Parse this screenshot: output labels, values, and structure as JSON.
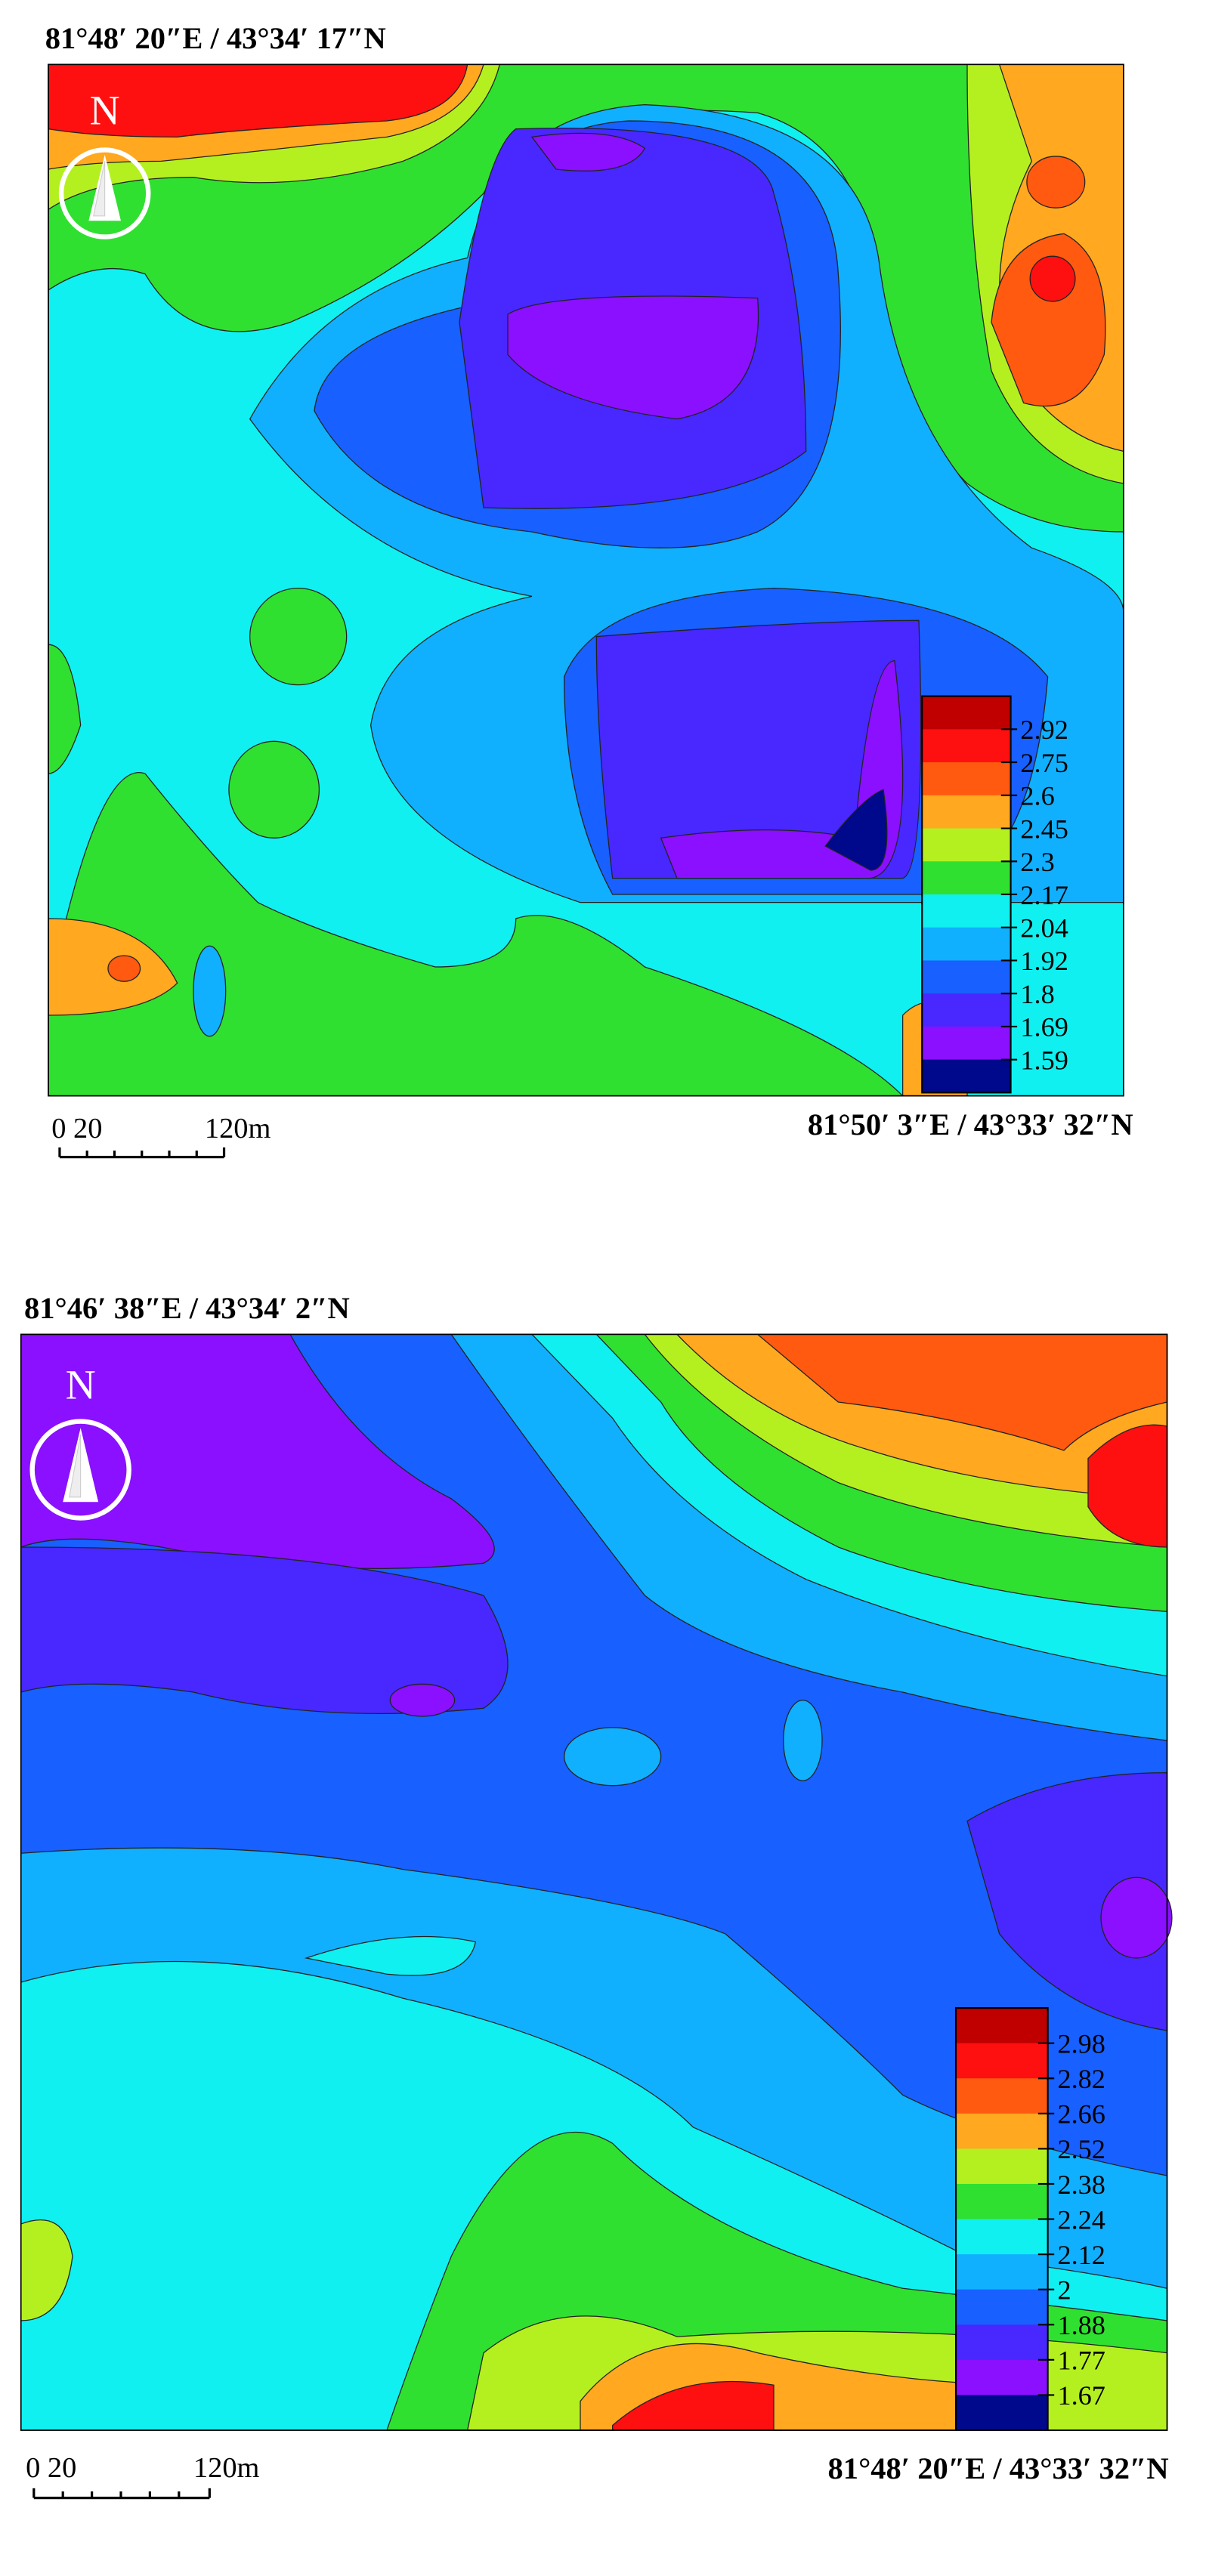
{
  "panels": [
    {
      "top_coordinate": "81°48′ 20″E / 43°34′ 17″N",
      "bottom_coordinate": "81°50′ 3″E / 43°33′ 32″N",
      "north": "N",
      "scale_start": "0 20",
      "scale_end": "120m",
      "colorbar_colors": [
        "#c00000",
        "#ff1010",
        "#ff5a10",
        "#ffa820",
        "#b4f020",
        "#30e030",
        "#10f0f0",
        "#10b0ff",
        "#1860ff",
        "#4828ff",
        "#8a10ff",
        "#00088c"
      ],
      "colorbar_ticks": [
        2.92,
        2.75,
        2.6,
        2.45,
        2.3,
        2.17,
        2.04,
        1.92,
        1.8,
        1.69,
        1.59
      ]
    },
    {
      "top_coordinate": "81°46′ 38″E / 43°34′ 2″N",
      "bottom_coordinate": "81°48′ 20″E / 43°33′ 32″N",
      "north": "N",
      "scale_start": "0 20",
      "scale_end": "120m",
      "colorbar_colors": [
        "#c00000",
        "#ff1010",
        "#ff5a10",
        "#ffa820",
        "#b4f020",
        "#30e030",
        "#10f0f0",
        "#10b0ff",
        "#1860ff",
        "#4828ff",
        "#8a10ff",
        "#00088c"
      ],
      "colorbar_ticks": [
        2.98,
        2.82,
        2.66,
        2.52,
        2.38,
        2.24,
        2.12,
        2.0,
        1.88,
        1.77,
        1.67
      ]
    }
  ]
}
